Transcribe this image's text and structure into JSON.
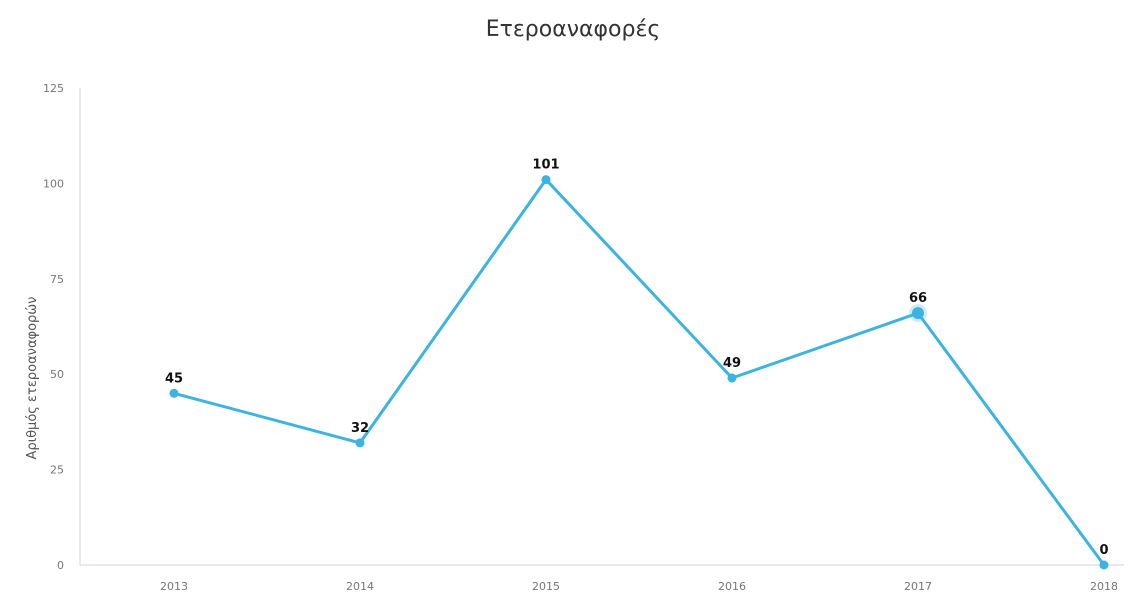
{
  "chart_data": {
    "type": "line",
    "title": "Ετεροαναφορές",
    "ylabel": "Αριθμός ετεροαναφορών",
    "xlabel": "",
    "categories": [
      "2013",
      "2014",
      "2015",
      "2016",
      "2017",
      "2018"
    ],
    "series": [
      {
        "values": [
          45,
          32,
          101,
          49,
          66,
          0
        ]
      }
    ],
    "data_labels": [
      "45",
      "32",
      "101",
      "49",
      "66",
      "0"
    ],
    "yticks": [
      "0",
      "25",
      "50",
      "75",
      "100",
      "125"
    ],
    "ylim": [
      0,
      125
    ],
    "grid": false,
    "legend": "none",
    "color": "#3cb3e0",
    "highlight_index": 4
  }
}
